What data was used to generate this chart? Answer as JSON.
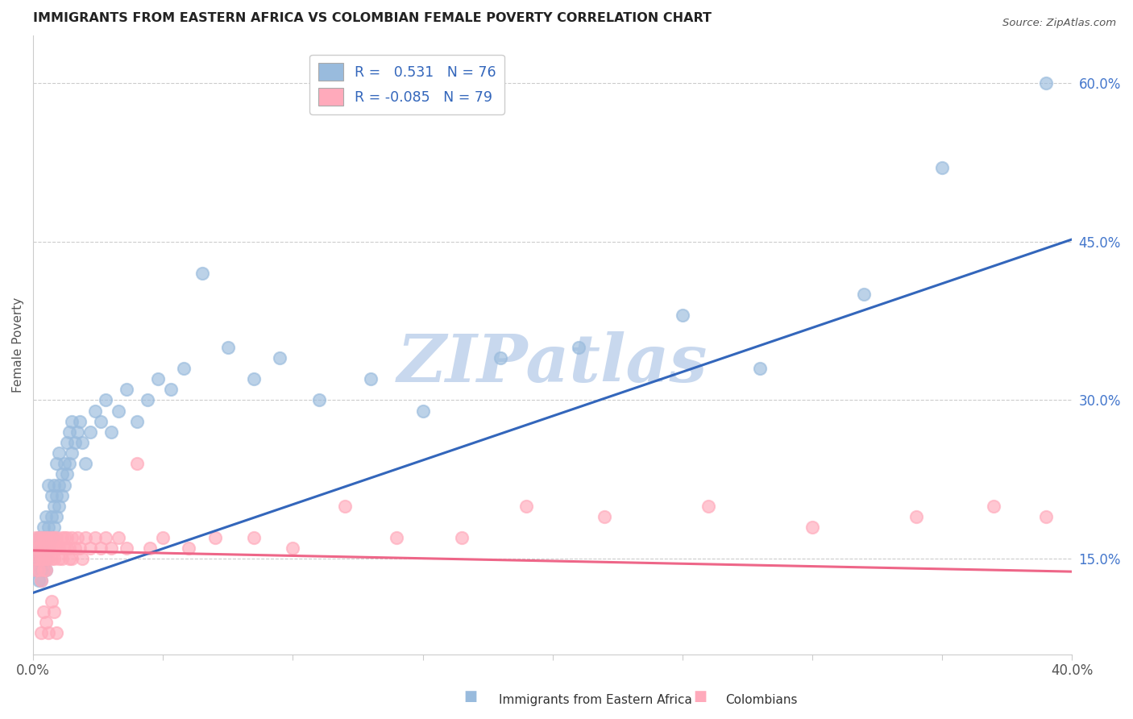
{
  "title": "IMMIGRANTS FROM EASTERN AFRICA VS COLOMBIAN FEMALE POVERTY CORRELATION CHART",
  "source": "Source: ZipAtlas.com",
  "ylabel": "Female Poverty",
  "right_yticks": [
    "60.0%",
    "45.0%",
    "30.0%",
    "15.0%"
  ],
  "right_ytick_vals": [
    0.6,
    0.45,
    0.3,
    0.15
  ],
  "xlim": [
    0.0,
    0.4
  ],
  "ylim": [
    0.06,
    0.645
  ],
  "blue_R": 0.531,
  "blue_N": 76,
  "pink_R": -0.085,
  "pink_N": 79,
  "blue_color": "#99BBDD",
  "pink_color": "#FFAABB",
  "blue_line_color": "#3366BB",
  "pink_line_color": "#EE6688",
  "watermark": "ZIPatlas",
  "watermark_color": "#C8D8EE",
  "legend_label_blue": "Immigrants from Eastern Africa",
  "legend_label_pink": "Colombians",
  "blue_line_x0": 0.0,
  "blue_line_y0": 0.118,
  "blue_line_x1": 0.4,
  "blue_line_y1": 0.452,
  "pink_line_x0": 0.0,
  "pink_line_y0": 0.158,
  "pink_line_x1": 0.4,
  "pink_line_y1": 0.138,
  "blue_scatter_x": [
    0.001,
    0.001,
    0.001,
    0.002,
    0.002,
    0.002,
    0.002,
    0.003,
    0.003,
    0.003,
    0.003,
    0.003,
    0.004,
    0.004,
    0.004,
    0.004,
    0.005,
    0.005,
    0.005,
    0.005,
    0.006,
    0.006,
    0.006,
    0.007,
    0.007,
    0.007,
    0.008,
    0.008,
    0.008,
    0.009,
    0.009,
    0.009,
    0.01,
    0.01,
    0.01,
    0.011,
    0.011,
    0.012,
    0.012,
    0.013,
    0.013,
    0.014,
    0.014,
    0.015,
    0.015,
    0.016,
    0.017,
    0.018,
    0.019,
    0.02,
    0.022,
    0.024,
    0.026,
    0.028,
    0.03,
    0.033,
    0.036,
    0.04,
    0.044,
    0.048,
    0.053,
    0.058,
    0.065,
    0.075,
    0.085,
    0.095,
    0.11,
    0.13,
    0.15,
    0.18,
    0.21,
    0.25,
    0.28,
    0.32,
    0.35,
    0.39
  ],
  "blue_scatter_y": [
    0.14,
    0.16,
    0.15,
    0.13,
    0.15,
    0.17,
    0.14,
    0.15,
    0.16,
    0.14,
    0.17,
    0.13,
    0.15,
    0.16,
    0.18,
    0.14,
    0.15,
    0.17,
    0.19,
    0.14,
    0.16,
    0.18,
    0.22,
    0.17,
    0.19,
    0.21,
    0.18,
    0.2,
    0.22,
    0.19,
    0.21,
    0.24,
    0.2,
    0.22,
    0.25,
    0.21,
    0.23,
    0.22,
    0.24,
    0.23,
    0.26,
    0.24,
    0.27,
    0.25,
    0.28,
    0.26,
    0.27,
    0.28,
    0.26,
    0.24,
    0.27,
    0.29,
    0.28,
    0.3,
    0.27,
    0.29,
    0.31,
    0.28,
    0.3,
    0.32,
    0.31,
    0.33,
    0.42,
    0.35,
    0.32,
    0.34,
    0.3,
    0.32,
    0.29,
    0.34,
    0.35,
    0.38,
    0.33,
    0.4,
    0.52,
    0.6
  ],
  "pink_scatter_x": [
    0.001,
    0.001,
    0.001,
    0.001,
    0.002,
    0.002,
    0.002,
    0.002,
    0.003,
    0.003,
    0.003,
    0.003,
    0.004,
    0.004,
    0.004,
    0.004,
    0.005,
    0.005,
    0.005,
    0.005,
    0.006,
    0.006,
    0.006,
    0.007,
    0.007,
    0.007,
    0.008,
    0.008,
    0.008,
    0.009,
    0.009,
    0.01,
    0.01,
    0.011,
    0.011,
    0.012,
    0.012,
    0.013,
    0.013,
    0.014,
    0.014,
    0.015,
    0.015,
    0.016,
    0.017,
    0.018,
    0.019,
    0.02,
    0.022,
    0.024,
    0.026,
    0.028,
    0.03,
    0.033,
    0.036,
    0.04,
    0.045,
    0.05,
    0.06,
    0.07,
    0.085,
    0.1,
    0.12,
    0.14,
    0.165,
    0.19,
    0.22,
    0.26,
    0.3,
    0.34,
    0.37,
    0.39,
    0.003,
    0.004,
    0.005,
    0.006,
    0.007,
    0.008,
    0.009
  ],
  "pink_scatter_y": [
    0.14,
    0.15,
    0.16,
    0.17,
    0.14,
    0.15,
    0.16,
    0.17,
    0.13,
    0.15,
    0.16,
    0.17,
    0.14,
    0.16,
    0.17,
    0.15,
    0.14,
    0.16,
    0.15,
    0.17,
    0.15,
    0.16,
    0.17,
    0.15,
    0.16,
    0.17,
    0.16,
    0.17,
    0.15,
    0.16,
    0.17,
    0.15,
    0.16,
    0.17,
    0.15,
    0.16,
    0.17,
    0.16,
    0.17,
    0.15,
    0.16,
    0.17,
    0.15,
    0.16,
    0.17,
    0.16,
    0.15,
    0.17,
    0.16,
    0.17,
    0.16,
    0.17,
    0.16,
    0.17,
    0.16,
    0.24,
    0.16,
    0.17,
    0.16,
    0.17,
    0.17,
    0.16,
    0.2,
    0.17,
    0.17,
    0.2,
    0.19,
    0.2,
    0.18,
    0.19,
    0.2,
    0.19,
    0.08,
    0.1,
    0.09,
    0.08,
    0.11,
    0.1,
    0.08
  ]
}
